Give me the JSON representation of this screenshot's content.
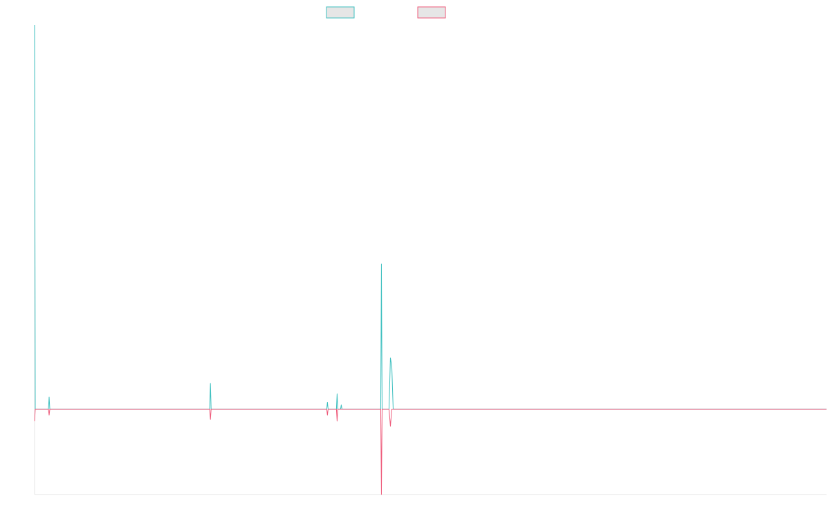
{
  "chart_data": {
    "type": "line",
    "title": "",
    "xlabel": "",
    "ylabel": "",
    "x": [
      0,
      1,
      2,
      3,
      4,
      5,
      6,
      7,
      8,
      9,
      10,
      11,
      12,
      13,
      14,
      15,
      16,
      17,
      18,
      19,
      20,
      21,
      22,
      23,
      24,
      25,
      26,
      27,
      28,
      29,
      30,
      31,
      32,
      33,
      34,
      35,
      36,
      37,
      38,
      39,
      40,
      41,
      42,
      43,
      44,
      45,
      46,
      47,
      48,
      49,
      50,
      51,
      52,
      53,
      54,
      55,
      56,
      57,
      58,
      59,
      60,
      61,
      62,
      63,
      64,
      65,
      66,
      67,
      68,
      69,
      70,
      71,
      72,
      73,
      74,
      75,
      76,
      77,
      78,
      79,
      80,
      81,
      82,
      83,
      84,
      85,
      86,
      87,
      88,
      89,
      90,
      91,
      92,
      93,
      94,
      95,
      96,
      97,
      98,
      99,
      100,
      101,
      102,
      103,
      104,
      105,
      106,
      107,
      108,
      109,
      110,
      111,
      112,
      113,
      114,
      115,
      116,
      117,
      118,
      119,
      120,
      121,
      122,
      123,
      124,
      125,
      126,
      127,
      128,
      129,
      130,
      131,
      132,
      133,
      134,
      135,
      136,
      137,
      138,
      139,
      140,
      141,
      142,
      143,
      144,
      145,
      146,
      147,
      148,
      149,
      150,
      151,
      152,
      153,
      154,
      155,
      156,
      157,
      158,
      159,
      160,
      161,
      162,
      163,
      164,
      165,
      166,
      167,
      168,
      169,
      170,
      171,
      172,
      173,
      174,
      175,
      176,
      177,
      178,
      179,
      180,
      181,
      182,
      183,
      184,
      185,
      186,
      187,
      188,
      189,
      190,
      191,
      192,
      193,
      194,
      195,
      196,
      197,
      198,
      199,
      200,
      201,
      202,
      203,
      204,
      205,
      206,
      207,
      208,
      209,
      210,
      211,
      212,
      213,
      214,
      215,
      216,
      217,
      218,
      219,
      220,
      221,
      222,
      223,
      224,
      225,
      226,
      227,
      228,
      229,
      230,
      231,
      232,
      233,
      234,
      235,
      236,
      237,
      238,
      239,
      240,
      241,
      242,
      243,
      244,
      245,
      246,
      247,
      248,
      249,
      250,
      251,
      252,
      253,
      254,
      255,
      256,
      257,
      258,
      259,
      260,
      261,
      262,
      263,
      264,
      265,
      266,
      267,
      268,
      269,
      270,
      271,
      272,
      273,
      274,
      275,
      276,
      277,
      278,
      279,
      280,
      281,
      282,
      283,
      284,
      285,
      286,
      287,
      288,
      289,
      290,
      291,
      292,
      293,
      294,
      295,
      296,
      297,
      298,
      299,
      300,
      301,
      302,
      303,
      304,
      305,
      306,
      307,
      308,
      309,
      310,
      311,
      312,
      313,
      314,
      315,
      316,
      317,
      318,
      319,
      320,
      321,
      322,
      323,
      324,
      325,
      326,
      327,
      328,
      329,
      330,
      331,
      332,
      333,
      334,
      335,
      336,
      337,
      338,
      339,
      340,
      341,
      342,
      343,
      344,
      345,
      346,
      347,
      348,
      349,
      350,
      351,
      352,
      353,
      354,
      355,
      356,
      357,
      358,
      359,
      360,
      361,
      362,
      363,
      364,
      365,
      366,
      367,
      368,
      369,
      370,
      371,
      372,
      373,
      374,
      375,
      376,
      377,
      378,
      379,
      380,
      381,
      382,
      383,
      384,
      385,
      386,
      387,
      388,
      389,
      390,
      391,
      392,
      393,
      394,
      395,
      396,
      397,
      398,
      399,
      400,
      401,
      402,
      403,
      404,
      405,
      406,
      407,
      408,
      409,
      410,
      411,
      412,
      413,
      414,
      415,
      416,
      417,
      418,
      419,
      420,
      421,
      422,
      423,
      424,
      425,
      426,
      427,
      428,
      429,
      430,
      431,
      432,
      433,
      434,
      435,
      436,
      437,
      438,
      439,
      440,
      441,
      442,
      443,
      444,
      445,
      446,
      447,
      448,
      449,
      450,
      451,
      452,
      453,
      454,
      455,
      456,
      457,
      458,
      459,
      460,
      461,
      462,
      463,
      464,
      465,
      466,
      467,
      468,
      469,
      470,
      471,
      472,
      473,
      474,
      475,
      476,
      477,
      478,
      479,
      480,
      481,
      482,
      483,
      484,
      485,
      486,
      487,
      488,
      489,
      490,
      491,
      492,
      493,
      494,
      495,
      496,
      497,
      498,
      499,
      500,
      501,
      502,
      503,
      504,
      505,
      506,
      507,
      508,
      509,
      510,
      511,
      512,
      513,
      514,
      515,
      516,
      517,
      518,
      519,
      520,
      521,
      522,
      523,
      524,
      525,
      526,
      527,
      528,
      529,
      530,
      531,
      532,
      533,
      534,
      535,
      536,
      537,
      538,
      539,
      540,
      541,
      542,
      543,
      544,
      545,
      546,
      547,
      548,
      549,
      550,
      551,
      552,
      553,
      554,
      555,
      556,
      557,
      558,
      559,
      560,
      561,
      562,
      563,
      564,
      565,
      566,
      567,
      568,
      569,
      570,
      571,
      572,
      573,
      574,
      575,
      576,
      577,
      578,
      579,
      580,
      581,
      582,
      583,
      584,
      585,
      586,
      587,
      588,
      589,
      590,
      591,
      592,
      593,
      594,
      595,
      596,
      597,
      598,
      599,
      600,
      601,
      602,
      603,
      604,
      605,
      606,
      607,
      608,
      609,
      610,
      611,
      612,
      613,
      614,
      615,
      616,
      617,
      618,
      619,
      620,
      621,
      622,
      623,
      624,
      625,
      626,
      627,
      628,
      629,
      630,
      631,
      632,
      633,
      634,
      635,
      636,
      637,
      638,
      639,
      640,
      641,
      642,
      643,
      644,
      645,
      646,
      647,
      648,
      649,
      650,
      651,
      652,
      653,
      654,
      655,
      656,
      657,
      658,
      659,
      660,
      661,
      662,
      663,
      664,
      665,
      666,
      667,
      668,
      669,
      670,
      671,
      672,
      673,
      674,
      675,
      676,
      677,
      678,
      679,
      680,
      681,
      682,
      683,
      684,
      685,
      686,
      687,
      688,
      689,
      690,
      691,
      692,
      693,
      694,
      695,
      696,
      697,
      698,
      699,
      700,
      701,
      702,
      703,
      704,
      705,
      706,
      707,
      708,
      709,
      710,
      711,
      712,
      713,
      714,
      715,
      716,
      717,
      718,
      719,
      720,
      721,
      722,
      723,
      724,
      725,
      726,
      727,
      728,
      729,
      730,
      731,
      732,
      733,
      734,
      735,
      736,
      737,
      738,
      739,
      740,
      741,
      742,
      743,
      744,
      745,
      746,
      747,
      748,
      749,
      750,
      751,
      752,
      753,
      754,
      755,
      756,
      757,
      758,
      759,
      760,
      761,
      762,
      763,
      764,
      765,
      766,
      767,
      768,
      769,
      770,
      771,
      772,
      773,
      774,
      775,
      776,
      777,
      778,
      779,
      780,
      781,
      782,
      783,
      784,
      785,
      786,
      787,
      788,
      789,
      790,
      791,
      792,
      793,
      794,
      795,
      796,
      797,
      798,
      799,
      800,
      801,
      802,
      803,
      804,
      805,
      806,
      807,
      808,
      809,
      810,
      811,
      812,
      813,
      814,
      815,
      816,
      817,
      818,
      819,
      820,
      821,
      822,
      823,
      824,
      825,
      826,
      827,
      828,
      829,
      830,
      831,
      832,
      833,
      834,
      835,
      836,
      837,
      838,
      839,
      840,
      841,
      842,
      843,
      844,
      845,
      846,
      847,
      848,
      849,
      850,
      851,
      852,
      853,
      854,
      855,
      856,
      857,
      858,
      859,
      860,
      861,
      862,
      863,
      864,
      865,
      866,
      867,
      868,
      869,
      870,
      871,
      872,
      873,
      874,
      875,
      876,
      877,
      878,
      879,
      880,
      881,
      882,
      883,
      884,
      885,
      886,
      887,
      888,
      889,
      890,
      891,
      892,
      893,
      894,
      895,
      896,
      897,
      898,
      899,
      900,
      901,
      902,
      903,
      904,
      905,
      906,
      907,
      908,
      909,
      910,
      911,
      912,
      913,
      914,
      915,
      916,
      917,
      918,
      919,
      920,
      921,
      922,
      923,
      924,
      925,
      926,
      927,
      928,
      929,
      930,
      931,
      932,
      933,
      934,
      935,
      936,
      937,
      938,
      939,
      940,
      941,
      942,
      943,
      944,
      945,
      946,
      947,
      948,
      949,
      950,
      951,
      952,
      953,
      954,
      955,
      956,
      957,
      958,
      959,
      960,
      961,
      962,
      963,
      964,
      965,
      966,
      967,
      968,
      969,
      970,
      971,
      972,
      973,
      974,
      975,
      976,
      977,
      978,
      979,
      980,
      981,
      982,
      983,
      984,
      985,
      986,
      987,
      988,
      989,
      990,
      991,
      992,
      993,
      994,
      995,
      996,
      997,
      998,
      999,
      1000,
      1001,
      1002,
      1003,
      1004,
      1005,
      1006,
      1007,
      1008,
      1009,
      1010,
      1011,
      1012,
      1013,
      1014,
      1015,
      1016,
      1017,
      1018,
      1019,
      1020,
      1021,
      1022,
      1023,
      1024,
      1025,
      1026,
      1027,
      1028,
      1029,
      1030,
      1031,
      1032,
      1033,
      1034,
      1035,
      1036,
      1037,
      1038,
      1039,
      1040,
      1041,
      1042,
      1043,
      1044,
      1045,
      1046,
      1047,
      1048,
      1049,
      1050,
      1051,
      1052,
      1053,
      1054,
      1055,
      1056,
      1057,
      1058,
      1059,
      1060,
      1061,
      1062,
      1063,
      1064,
      1065,
      1066,
      1067,
      1068,
      1069,
      1070,
      1071,
      1072,
      1073,
      1074,
      1075,
      1076,
      1077,
      1078,
      1079,
      1080,
      1081,
      1082,
      1083,
      1084,
      1085,
      1086,
      1087,
      1088,
      1089,
      1090,
      1091,
      1092,
      1093,
      1094,
      1095,
      1096,
      1097,
      1098,
      1099,
      1100,
      1101,
      1102,
      1103,
      1104,
      1105,
      1106,
      1107,
      1108,
      1109,
      1110,
      1111,
      1112,
      1113,
      1114,
      1115,
      1116,
      1117,
      1118,
      1119,
      1120,
      1121,
      1122,
      1123,
      1124,
      1125,
      1126,
      1127,
      1128,
      1129,
      1130,
      1131,
      1132,
      1133,
      1134,
      1135,
      1136,
      1137,
      1138,
      1139,
      1140,
      1141,
      1142,
      1143,
      1144
    ],
    "series": [
      {
        "color": "#3cbfbf",
        "values": [
          [
            0,
            2.25
          ],
          [
            1,
            0.0
          ],
          [
            20,
            0.0
          ],
          [
            21,
            0.07
          ],
          [
            22,
            0.0
          ],
          [
            253,
            0.0
          ],
          [
            254,
            0.15
          ],
          [
            255,
            0.0
          ],
          [
            422,
            0.0
          ],
          [
            423,
            0.04
          ],
          [
            424,
            0.0
          ],
          [
            436,
            0.0
          ],
          [
            437,
            0.09
          ],
          [
            438,
            0.0
          ],
          [
            442,
            0.0
          ],
          [
            443,
            0.025
          ],
          [
            444,
            0.0
          ],
          [
            498,
            0.0
          ],
          [
            500,
            0.0
          ],
          [
            501,
            0.85
          ],
          [
            502,
            0.0
          ],
          [
            512,
            0.0
          ],
          [
            514,
            0.3
          ],
          [
            516,
            0.25
          ],
          [
            518,
            0.0
          ],
          [
            1144,
            0.0
          ]
        ]
      },
      {
        "color": "#ee5a7a",
        "values": [
          [
            0,
            -0.07
          ],
          [
            1,
            0.0
          ],
          [
            20,
            0.0
          ],
          [
            21,
            -0.035
          ],
          [
            22,
            0.0
          ],
          [
            253,
            0.0
          ],
          [
            254,
            -0.06
          ],
          [
            255,
            0.0
          ],
          [
            422,
            0.0
          ],
          [
            423,
            -0.035
          ],
          [
            424,
            0.0
          ],
          [
            436,
            0.0
          ],
          [
            437,
            -0.07
          ],
          [
            438,
            0.0
          ],
          [
            498,
            0.0
          ],
          [
            500,
            0.0
          ],
          [
            501,
            -0.5
          ],
          [
            502,
            0.0
          ],
          [
            512,
            0.0
          ],
          [
            514,
            -0.1
          ],
          [
            516,
            0.0
          ],
          [
            1144,
            0.0
          ]
        ]
      }
    ],
    "xlim": [
      0,
      1144
    ],
    "ylim": [
      -0.5,
      2.25
    ],
    "grid": false,
    "legend_placement": "top-center"
  }
}
